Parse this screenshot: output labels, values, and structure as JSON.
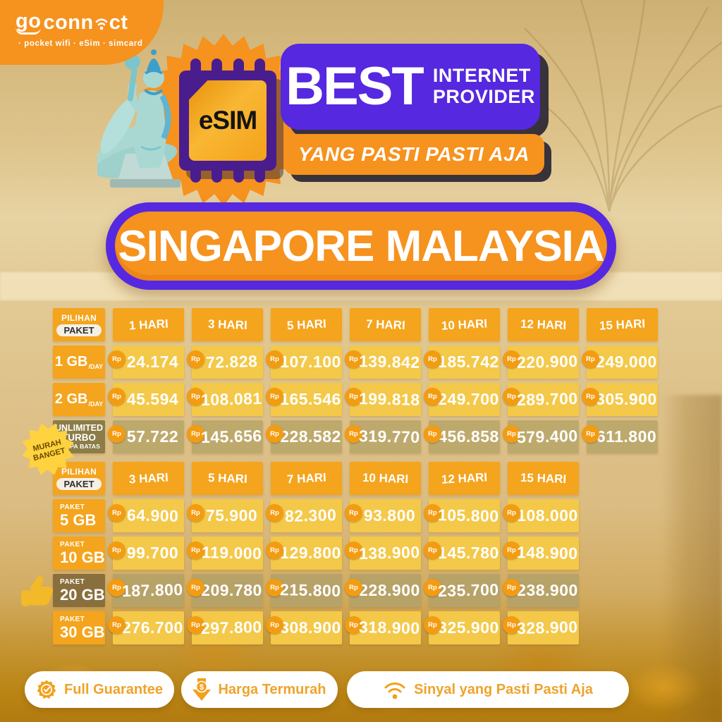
{
  "logo": {
    "brand_go": "go",
    "brand_conn": "conn",
    "brand_ct": "ct",
    "tagline": "· pocket wifi · eSim · simcard"
  },
  "hero": {
    "esim_label": "eSIM",
    "best": "BEST",
    "line1": "INTERNET",
    "line2": "PROVIDER",
    "subline": "YANG PASTI PASTI AJA"
  },
  "destination": "SINGAPORE MALAYSIA",
  "currency": "Rp",
  "promo_badge": {
    "line1": "MURAH",
    "line2": "BANGET"
  },
  "table1": {
    "corner": {
      "line1": "PILIHAN",
      "line2": "PAKET"
    },
    "columns": [
      "1 HARI",
      "3 HARI",
      "5 HARI",
      "7 HARI",
      "10 HARI",
      "12 HARI",
      "15 HARI"
    ],
    "rows": [
      {
        "label": "1 GB",
        "suffix": "/DAY",
        "prices": [
          "24.174",
          "72.828",
          "107.100",
          "139.842",
          "185.742",
          "220.900",
          "249.000"
        ]
      },
      {
        "label": "2 GB",
        "suffix": "/DAY",
        "prices": [
          "45.594",
          "108.081",
          "165.546",
          "199.818",
          "249.700",
          "289.700",
          "305.900"
        ]
      },
      {
        "label_line1": "UNLIMITED",
        "label_line2": "TURBO",
        "label_line3": "TANPA BATAS",
        "prices": [
          "57.722",
          "145.656",
          "228.582",
          "319.770",
          "456.858",
          "579.400",
          "611.800"
        ]
      }
    ]
  },
  "table2": {
    "corner": {
      "line1": "PILIHAN",
      "line2": "PAKET"
    },
    "columns": [
      "3 HARI",
      "5 HARI",
      "7 HARI",
      "10 HARI",
      "12 HARI",
      "15 HARI"
    ],
    "rows": [
      {
        "label_line1": "PAKET",
        "label_line2": "5 GB",
        "prices": [
          "64.900",
          "75.900",
          "82.300",
          "93.800",
          "105.800",
          "108.000"
        ]
      },
      {
        "label_line1": "PAKET",
        "label_line2": "10 GB",
        "prices": [
          "99.700",
          "119.000",
          "129.800",
          "138.900",
          "145.780",
          "148.900"
        ]
      },
      {
        "label_line1": "PAKET",
        "label_line2": "20 GB",
        "prices": [
          "187.800",
          "209.780",
          "215.800",
          "228.900",
          "235.700",
          "238.900"
        ]
      },
      {
        "label_line1": "PAKET",
        "label_line2": "30 GB",
        "prices": [
          "276.700",
          "297.800",
          "308.900",
          "318.900",
          "325.900",
          "328.900"
        ]
      }
    ]
  },
  "footer": {
    "badges": [
      {
        "icon": "guarantee-seal-icon",
        "label": "Full Guarantee"
      },
      {
        "icon": "lowest-price-icon",
        "label": "Harga Termurah"
      },
      {
        "icon": "wifi-signal-icon",
        "label": "Sinyal yang Pasti Pasti Aja"
      }
    ]
  },
  "colors": {
    "brand_orange": "#F6921E",
    "header_orange": "#F4A41D",
    "cell_yellow": "#F4C848",
    "khaki_cell": "#BEA96D",
    "olive_label": "#8C7C47",
    "brown_label": "#8A6F3E",
    "purple": "#5628E0",
    "esim_purple": "#4A1D8E",
    "gold_text": "#EFA32A"
  }
}
